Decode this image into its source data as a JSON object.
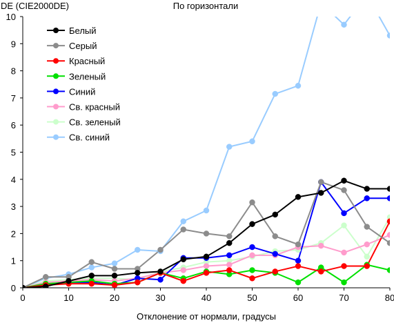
{
  "chart_data": {
    "type": "line",
    "title": "По горизонтали",
    "ylabel": "DE (CIE2000DE)",
    "xlabel": "Отклонение от нормали, градусы",
    "xlim": [
      0,
      80
    ],
    "ylim": [
      0,
      10
    ],
    "xticks": [
      "0",
      "10",
      "20",
      "30",
      "40",
      "50",
      "60",
      "70",
      "80"
    ],
    "yticks": [
      "0",
      "1",
      "2",
      "3",
      "4",
      "5",
      "6",
      "7",
      "8",
      "9",
      "10"
    ],
    "grid": false,
    "legend_position": "top-left",
    "x": [
      0,
      5,
      10,
      15,
      20,
      25,
      30,
      35,
      40,
      45,
      50,
      55,
      60,
      65,
      70,
      75,
      80
    ],
    "series": [
      {
        "name": "Белый",
        "color": "#000000",
        "values": [
          0,
          0.05,
          0.25,
          0.45,
          0.45,
          0.55,
          0.6,
          1.05,
          1.15,
          1.65,
          2.35,
          2.7,
          3.35,
          3.5,
          3.95,
          3.65,
          3.65
        ]
      },
      {
        "name": "Серый",
        "color": "#8c8c8c",
        "values": [
          0,
          0.4,
          0.4,
          0.95,
          0.7,
          0.7,
          1.4,
          2.15,
          2.0,
          1.9,
          3.15,
          1.9,
          1.6,
          3.9,
          3.6,
          2.25,
          1.65
        ]
      },
      {
        "name": "Красный",
        "color": "#ff0000",
        "values": [
          0,
          0.1,
          0.15,
          0.15,
          0.1,
          0.2,
          0.55,
          0.25,
          0.55,
          0.65,
          0.35,
          0.6,
          0.8,
          0.6,
          0.8,
          0.8,
          2.45
        ]
      },
      {
        "name": "Зеленый",
        "color": "#00e000",
        "values": [
          0,
          0.15,
          0.2,
          0.25,
          0.15,
          0.2,
          0.55,
          0.35,
          0.6,
          0.5,
          0.65,
          0.55,
          0.2,
          0.75,
          0.2,
          0.85,
          0.65
        ]
      },
      {
        "name": "Синий",
        "color": "#0000ff",
        "values": [
          0,
          0.1,
          0.2,
          0.2,
          0.1,
          0.35,
          0.3,
          1.1,
          1.1,
          1.2,
          1.5,
          1.25,
          1.0,
          3.9,
          2.75,
          3.3,
          3.3
        ]
      },
      {
        "name": "Св. красный",
        "color": "#ff9ccc",
        "values": [
          0,
          0.2,
          0.25,
          0.3,
          0.25,
          0.35,
          0.55,
          0.65,
          0.8,
          0.85,
          1.2,
          1.2,
          1.5,
          1.55,
          1.3,
          1.6,
          1.95
        ]
      },
      {
        "name": "Св. зеленый",
        "color": "#ccffcc",
        "values": [
          0,
          0.25,
          0.3,
          0.35,
          0.35,
          0.3,
          0.6,
          0.75,
          0.95,
          1.0,
          1.15,
          1.35,
          1.4,
          1.65,
          2.3,
          1.15,
          2.6
        ]
      },
      {
        "name": "Св. синий",
        "color": "#99ccff",
        "values": [
          0,
          0.35,
          0.5,
          0.75,
          0.9,
          1.4,
          1.35,
          2.45,
          2.85,
          5.2,
          5.4,
          7.15,
          7.45,
          10.5,
          9.7,
          10.8,
          9.3
        ]
      }
    ]
  }
}
